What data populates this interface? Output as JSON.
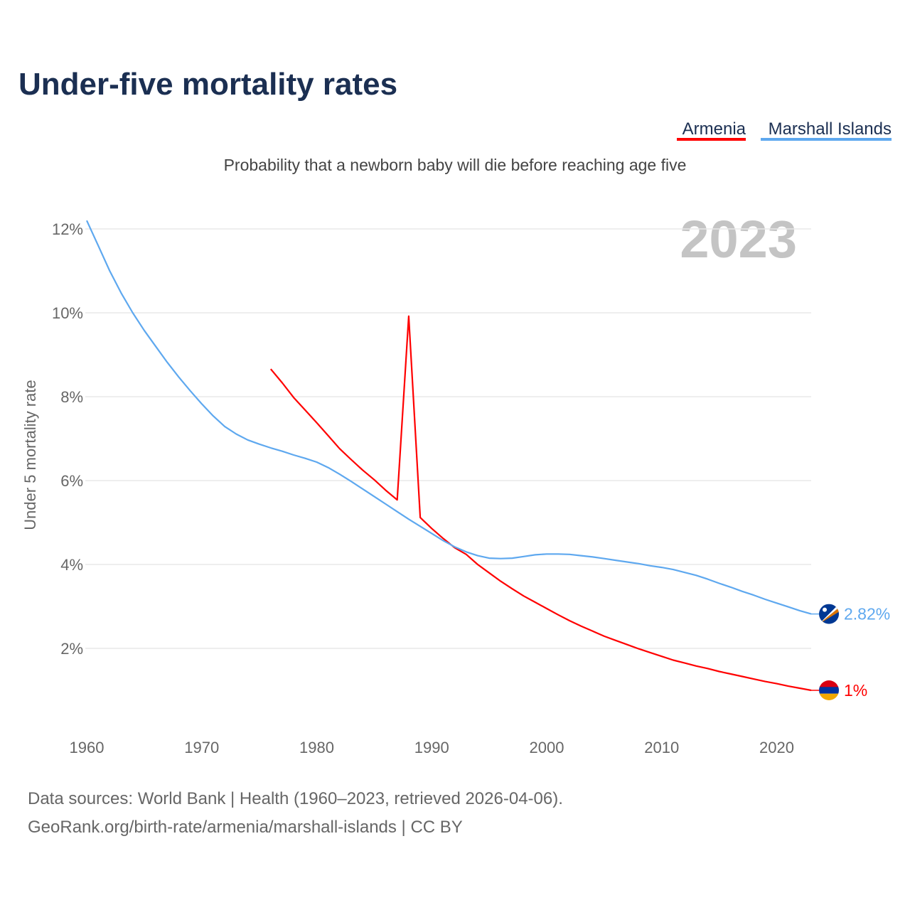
{
  "title": "Under-five mortality rates",
  "subtitle": "Probability that a newborn baby will die before reaching age five",
  "year_display": "2023",
  "footer": {
    "line1": "Data sources: World Bank | Health (1960–2023, retrieved 2026-04-06).",
    "line2": "GeoRank.org/birth-rate/armenia/marshall-islands | CC BY"
  },
  "chart_data": {
    "type": "line",
    "title": "Under-five mortality rates",
    "xlabel": "",
    "ylabel": "Under 5 mortality rate",
    "xlim": [
      1960,
      2023
    ],
    "ylim": [
      0,
      12.3
    ],
    "grid": true,
    "legend_placement": "top-right",
    "x_ticks": [
      1960,
      1970,
      1980,
      1990,
      2000,
      2010,
      2020
    ],
    "x_tick_labels": [
      "1960",
      "1970",
      "1980",
      "1990",
      "2000",
      "2010",
      "2020"
    ],
    "y_ticks": [
      2,
      4,
      6,
      8,
      10,
      12
    ],
    "y_tick_labels": [
      "2%",
      "4%",
      "6%",
      "8%",
      "10%",
      "12%"
    ],
    "series": [
      {
        "name": "Armenia",
        "color": "#ff0000",
        "end_label": "1%",
        "flag": "armenia-flag",
        "x_start": 1976,
        "values": [
          8.66,
          8.33,
          7.98,
          7.68,
          7.38,
          7.07,
          6.76,
          6.5,
          6.25,
          6.02,
          5.77,
          5.54,
          9.92,
          5.12,
          4.86,
          4.62,
          4.4,
          4.24,
          4.0,
          3.8,
          3.6,
          3.42,
          3.25,
          3.1,
          2.95,
          2.8,
          2.66,
          2.53,
          2.41,
          2.29,
          2.19,
          2.09,
          1.99,
          1.9,
          1.81,
          1.72,
          1.65,
          1.58,
          1.52,
          1.45,
          1.39,
          1.33,
          1.27,
          1.21,
          1.16,
          1.1,
          1.05,
          1.0
        ]
      },
      {
        "name": "Marshall Islands",
        "color": "#5ea8ef",
        "end_label": "2.82%",
        "flag": "marshall-islands-flag",
        "x_start": 1960,
        "values": [
          12.2,
          11.6,
          11.0,
          10.47,
          10.0,
          9.58,
          9.2,
          8.82,
          8.47,
          8.14,
          7.83,
          7.54,
          7.29,
          7.11,
          6.97,
          6.87,
          6.78,
          6.7,
          6.61,
          6.53,
          6.44,
          6.31,
          6.15,
          5.98,
          5.8,
          5.62,
          5.44,
          5.26,
          5.08,
          4.91,
          4.74,
          4.57,
          4.42,
          4.3,
          4.21,
          4.15,
          4.14,
          4.15,
          4.19,
          4.23,
          4.25,
          4.25,
          4.24,
          4.21,
          4.18,
          4.14,
          4.1,
          4.06,
          4.02,
          3.97,
          3.93,
          3.88,
          3.81,
          3.74,
          3.65,
          3.55,
          3.46,
          3.36,
          3.27,
          3.17,
          3.08,
          2.99,
          2.9,
          2.82
        ]
      }
    ]
  }
}
